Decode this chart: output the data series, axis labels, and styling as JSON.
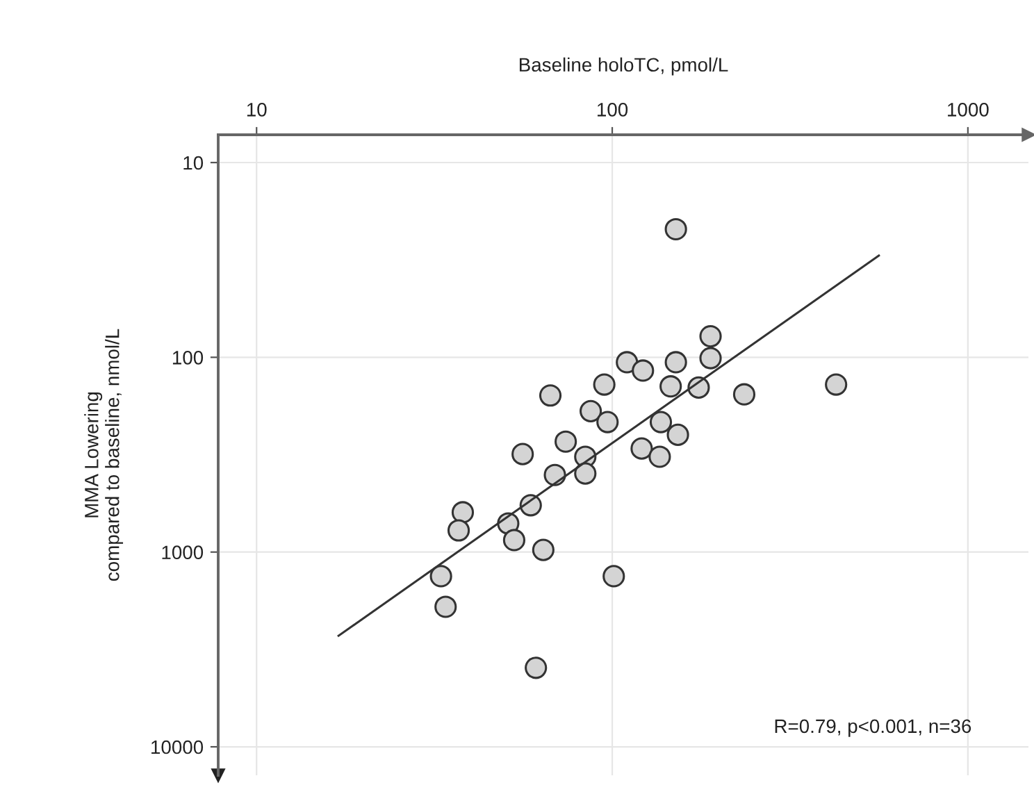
{
  "chart_data": {
    "type": "scatter",
    "xlabel": "Baseline holoTC, pmol/L",
    "ylabel": "MMA Lowering\ncompared to baseline, nmol/L",
    "log": "xy",
    "grid": true,
    "marker": "circle",
    "legend": false,
    "xlim": [
      7.8,
      1480
    ],
    "xticks": [
      10,
      100,
      1000
    ],
    "ylim": [
      14000,
      7.2
    ],
    "yticks": [
      10,
      100,
      1000,
      10000
    ],
    "series": [
      {
        "color": "#d4d4d4",
        "x": [
          151,
          189,
          189,
          110,
          122,
          151,
          146,
          175,
          95,
          67,
          87,
          97,
          137,
          153,
          121,
          136,
          56,
          74,
          84,
          69,
          84,
          235,
          426,
          59,
          38,
          37,
          51,
          53,
          64,
          33,
          34,
          101,
          61
        ],
        "values": [
          22,
          78,
          101,
          106,
          117,
          106,
          141,
          143,
          138,
          157,
          189,
          215,
          215,
          250,
          294,
          324,
          314,
          271,
          324,
          402,
          395,
          155,
          138,
          575,
          625,
          774,
          713,
          868,
          975,
          1330,
          1910,
          1330,
          3930
        ]
      },
      {
        "type": "line",
        "color": "#333333",
        "line_style": "solid",
        "marker": "none",
        "x": [
          17,
          562
        ],
        "values": [
          2690,
          30
        ]
      }
    ],
    "annotations": [
      {
        "text": "R=0.79, p<0.001, n=36"
      }
    ]
  }
}
